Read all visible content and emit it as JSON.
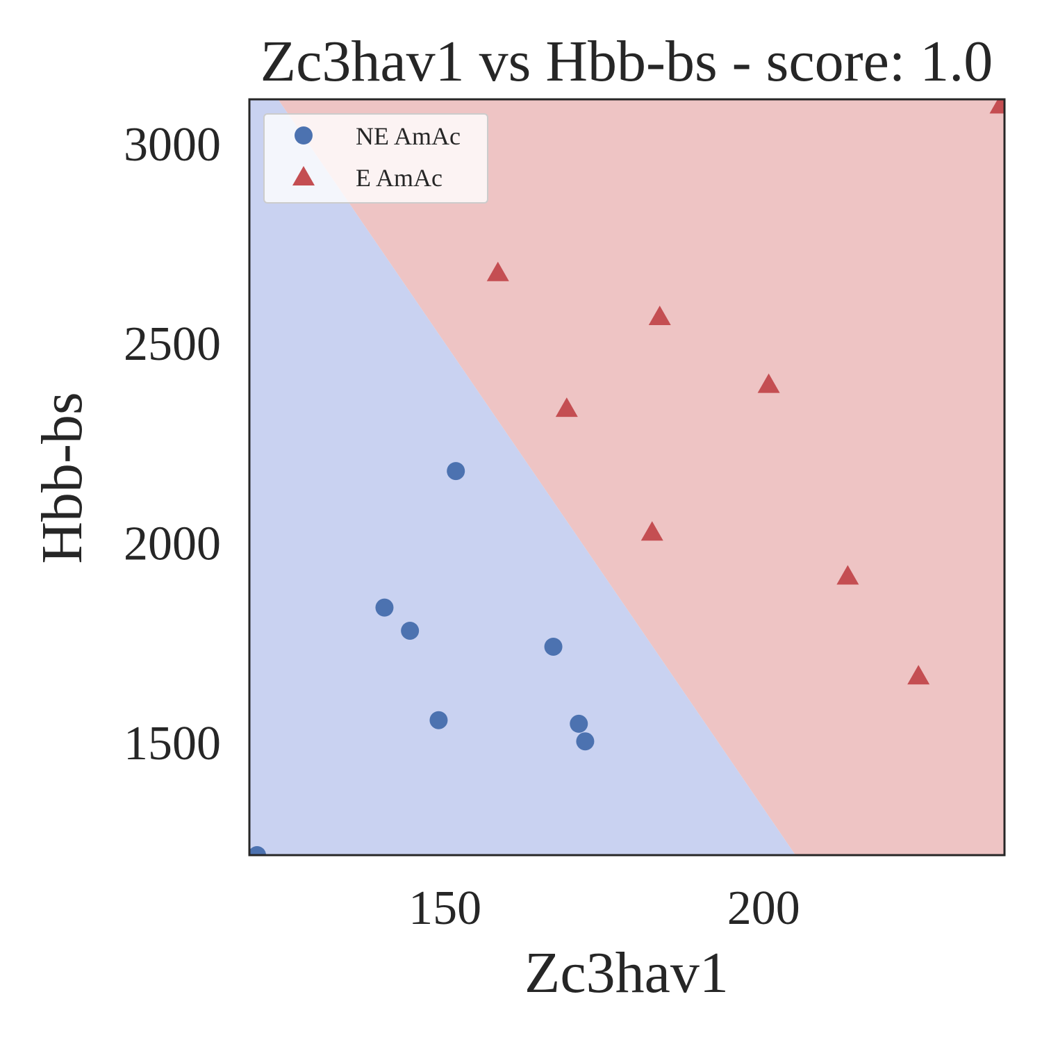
{
  "chart_data": {
    "type": "scatter",
    "title": "Zc3hav1 vs Hbb-bs - score: 1.0",
    "xlabel": "Zc3hav1",
    "ylabel": "Hbb-bs",
    "xlim": [
      119.3,
      237.8
    ],
    "ylim": [
      1218,
      3111
    ],
    "xticks": [
      150,
      200
    ],
    "xtick_labels": [
      "150",
      "200"
    ],
    "yticks": [
      1500,
      2000,
      2500,
      3000
    ],
    "ytick_labels": [
      "1500",
      "2000",
      "2500",
      "3000"
    ],
    "grid": false,
    "legend_position": "top-left",
    "decision_boundary": {
      "points": [
        [
          123.8,
          3111
        ],
        [
          205.0,
          1218
        ]
      ],
      "region_below_color": "#c9d2f1",
      "region_above_color": "#eec4c4"
    },
    "series": [
      {
        "name": "NE AmAc",
        "marker": "circle",
        "color": "#4c72b0",
        "points": [
          [
            120.5,
            1218
          ],
          [
            140.5,
            1838
          ],
          [
            144.5,
            1780
          ],
          [
            149.0,
            1556
          ],
          [
            151.7,
            2180
          ],
          [
            167.0,
            1740
          ],
          [
            171.0,
            1547
          ],
          [
            172.0,
            1503
          ]
        ]
      },
      {
        "name": "E AmAc",
        "marker": "triangle",
        "color": "#c44e52",
        "points": [
          [
            158.3,
            2680
          ],
          [
            169.1,
            2340
          ],
          [
            182.5,
            2030
          ],
          [
            183.7,
            2570
          ],
          [
            200.8,
            2400
          ],
          [
            213.2,
            1920
          ],
          [
            224.3,
            1670
          ],
          [
            237.2,
            3100
          ]
        ]
      }
    ]
  }
}
